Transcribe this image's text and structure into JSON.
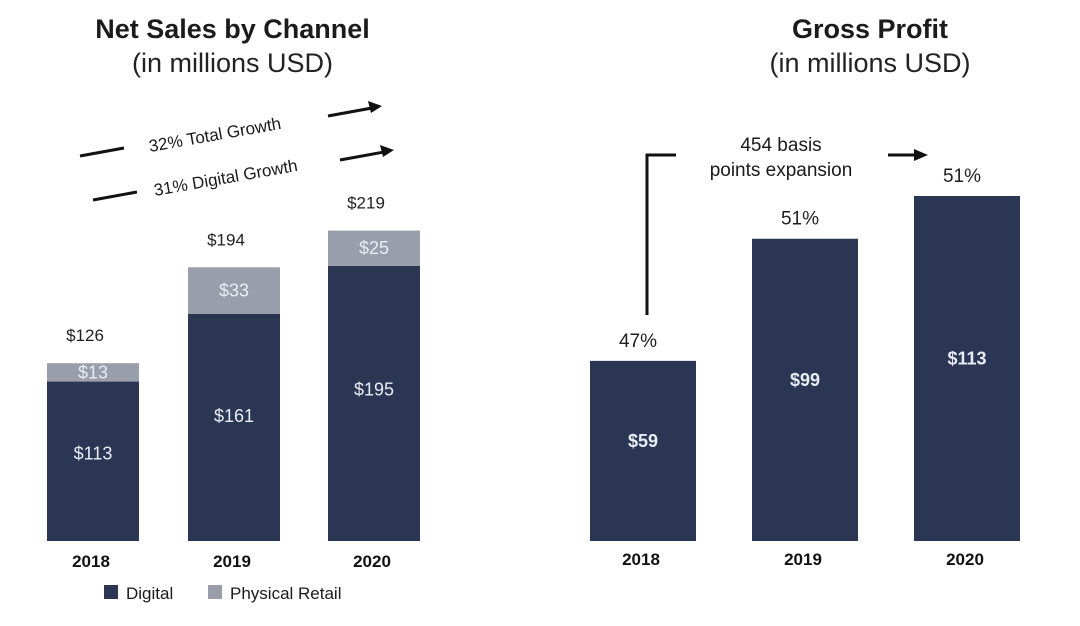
{
  "colors": {
    "digital": "#2b3654",
    "physical_retail": "#9a9eab",
    "text": "#1a1a1a"
  },
  "chart_data": [
    {
      "type": "bar",
      "stacked": true,
      "title": "Net Sales by Channel",
      "subtitle": "(in millions USD)",
      "categories": [
        "2018",
        "2019",
        "2020"
      ],
      "series": [
        {
          "name": "Digital",
          "values": [
            113,
            161,
            195
          ],
          "labels": [
            "$113",
            "$161",
            "$195"
          ]
        },
        {
          "name": "Physical Retail",
          "values": [
            13,
            33,
            25
          ],
          "labels": [
            "$13",
            "$33",
            "$25"
          ]
        }
      ],
      "totals": [
        126,
        194,
        219
      ],
      "total_labels": [
        "$126",
        "$194",
        "$219"
      ],
      "legend": [
        "Digital",
        "Physical Retail"
      ],
      "legend_position": "bottom",
      "annotations": [
        "32% Total Growth",
        "31% Digital Growth"
      ],
      "xlabel": "",
      "ylabel": "",
      "ylim": [
        0,
        219
      ],
      "grid": false
    },
    {
      "type": "bar",
      "title": "Gross Profit",
      "subtitle": "(in millions USD)",
      "categories": [
        "2018",
        "2019",
        "2020"
      ],
      "values": [
        59,
        99,
        113
      ],
      "value_labels": [
        "$59",
        "$99",
        "$113"
      ],
      "margin_labels": [
        "47%",
        "51%",
        "51%"
      ],
      "annotations": [
        "454 basis",
        "points expansion"
      ],
      "xlabel": "",
      "ylabel": "",
      "ylim": [
        0,
        113
      ],
      "grid": false
    }
  ]
}
